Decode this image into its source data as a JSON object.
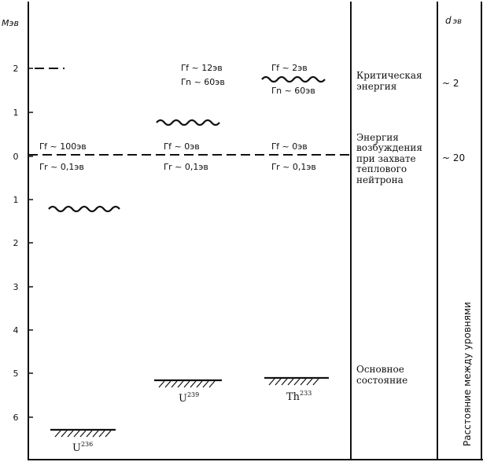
{
  "axis": {
    "unit": "Мэв",
    "ticks": [
      "2",
      "1",
      "0",
      "1",
      "2",
      "3",
      "4",
      "5",
      "6"
    ]
  },
  "levels": {
    "u236": {
      "label": "U",
      "mass": "236",
      "fission_width": "Γf ~ 100эв",
      "radiative_width": "Γr ~ 0,1эв"
    },
    "u239": {
      "label": "U",
      "mass": "239",
      "fission_width": "Γf ~ 12эв",
      "neutron_width": "Γn ~ 60эв",
      "fission_width_low": "Γf ~ 0эв",
      "radiative_width": "Γr ~ 0,1эв"
    },
    "th233": {
      "label": "Th",
      "mass": "233",
      "fission_width": "Γf ~ 2эв",
      "neutron_width": "Γn ~ 60эв",
      "fission_width_low": "Γf ~ 0эв",
      "radiative_width": "Γr ~ 0,1эв"
    }
  },
  "descriptions": {
    "critical_line1": "Критическая",
    "critical_line2": "энергия",
    "excitation_line1": "Энергия",
    "excitation_line2": "возбуждения",
    "excitation_line3": "при захвате",
    "excitation_line4": "теплового",
    "excitation_line5": "нейтрона",
    "ground_line1": "Основное",
    "ground_line2": "состояние"
  },
  "spacing": {
    "header_symbol": "d",
    "header_unit": "эв",
    "value_critical": "~ 2",
    "value_excitation": "~ 20",
    "vertical_caption": "Расстояние между уровнями"
  }
}
